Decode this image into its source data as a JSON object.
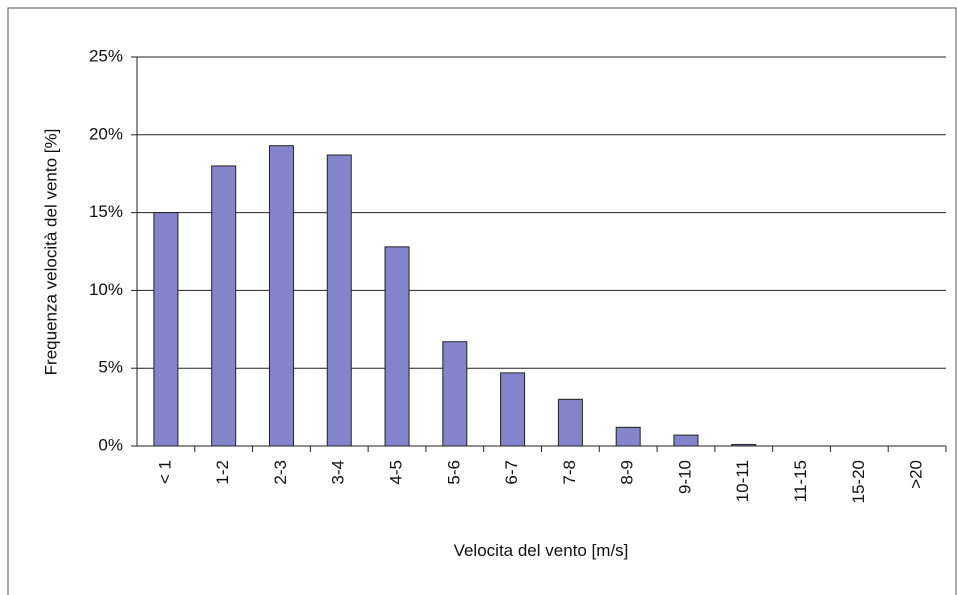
{
  "chart_data": {
    "type": "bar",
    "xlabel": "Velocita del vento [m/s]",
    "ylabel": "Frequenza velocità del vento [%]",
    "categories": [
      "< 1",
      "1-2",
      "2-3",
      "3-4",
      "4-5",
      "5-6",
      "6-7",
      "7-8",
      "8-9",
      "9-10",
      "10-11",
      "11-15",
      "15-20",
      ">20"
    ],
    "values": [
      15.0,
      18.0,
      19.3,
      18.7,
      12.8,
      6.7,
      4.7,
      3.0,
      1.2,
      0.7,
      0.1,
      0,
      0,
      0
    ],
    "color": "#8484cc",
    "ylim": [
      0,
      25
    ],
    "yticks": [
      {
        "value": 0,
        "label": "0%"
      },
      {
        "value": 5,
        "label": "5%"
      },
      {
        "value": 10,
        "label": "10%"
      },
      {
        "value": 15,
        "label": "15%"
      },
      {
        "value": 20,
        "label": "20%"
      },
      {
        "value": 25,
        "label": "25%"
      }
    ],
    "grid": true
  }
}
